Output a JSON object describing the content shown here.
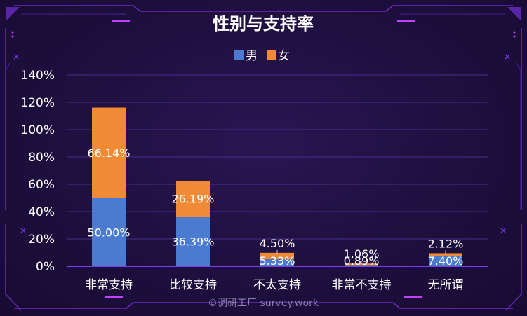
{
  "chart_data": {
    "type": "bar",
    "stacked": true,
    "title": "性别与支持率",
    "categories": [
      "非常支持",
      "比较支持",
      "不太支持",
      "非常不支持",
      "无所谓"
    ],
    "series": [
      {
        "name": "男",
        "color": "#4a7bd0",
        "values": [
          50.0,
          36.39,
          5.33,
          0.89,
          7.4
        ],
        "labels": [
          "50.00%",
          "36.39%",
          "5.33%",
          "0.89%",
          "7.40%"
        ]
      },
      {
        "name": "女",
        "color": "#f08a35",
        "values": [
          66.14,
          26.19,
          4.5,
          1.06,
          2.12
        ],
        "labels": [
          "66.14%",
          "26.19%",
          "4.50%",
          "1.06%",
          "2.12%"
        ]
      }
    ],
    "y_ticks": [
      "0%",
      "20%",
      "40%",
      "60%",
      "80%",
      "100%",
      "120%",
      "140%"
    ],
    "ylim": [
      0,
      140
    ],
    "grid": true,
    "legend_position": "top-center"
  },
  "watermark": "©调研工厂 survey.work",
  "colors": {
    "grid": "#4a2c8a",
    "axis": "#7a3cff",
    "frame": "#7b2fd0",
    "frame_accent": "#c040ff"
  }
}
